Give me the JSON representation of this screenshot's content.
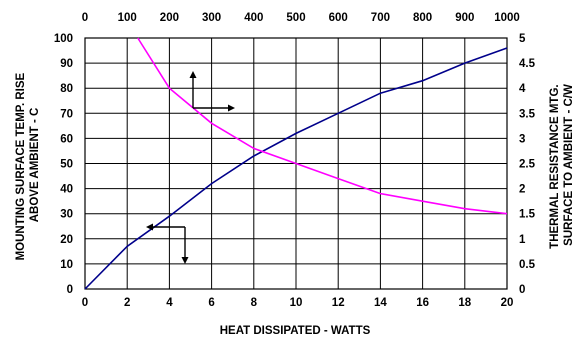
{
  "chart_data": {
    "type": "line",
    "title": "",
    "xlabel": "HEAT DISSIPATED - WATTS",
    "ylabel_left": [
      "MOUNTING SURFACE TEMP. RISE",
      "ABOVE AMBIENT - C"
    ],
    "ylabel_right": [
      "THERMAL RESISTANCE MTG.",
      "SURFACE TO AMBIENT - C/W"
    ],
    "x_bottom": {
      "range": [
        0,
        20
      ],
      "ticks": [
        "0",
        "2",
        "4",
        "6",
        "8",
        "10",
        "12",
        "14",
        "16",
        "18",
        "20"
      ]
    },
    "x_top": {
      "range": [
        0,
        1000
      ],
      "ticks": [
        "0",
        "100",
        "200",
        "300",
        "400",
        "500",
        "600",
        "700",
        "800",
        "900",
        "1000"
      ]
    },
    "y_left": {
      "range": [
        0,
        100
      ],
      "ticks": [
        "0",
        "10",
        "20",
        "30",
        "40",
        "50",
        "60",
        "70",
        "80",
        "90",
        "100"
      ]
    },
    "y_right": {
      "range": [
        0,
        5
      ],
      "ticks": [
        "0",
        "0.5",
        "1",
        "1.5",
        "2",
        "2.5",
        "3",
        "3.5",
        "4",
        "4.5",
        "5"
      ]
    },
    "grid": true,
    "series": [
      {
        "axis": "left-bottom",
        "color": "#00008B",
        "points": [
          [
            0,
            0
          ],
          [
            2,
            17
          ],
          [
            4,
            29
          ],
          [
            6,
            42
          ],
          [
            8,
            53
          ],
          [
            10,
            62
          ],
          [
            12,
            70
          ],
          [
            14,
            78
          ],
          [
            16,
            83
          ],
          [
            18,
            90
          ],
          [
            20,
            96
          ]
        ]
      },
      {
        "axis": "right-top",
        "color": "#FF00FF",
        "points": [
          [
            125,
            5.0
          ],
          [
            200,
            4.0
          ],
          [
            300,
            3.3
          ],
          [
            400,
            2.8
          ],
          [
            500,
            2.5
          ],
          [
            600,
            2.2
          ],
          [
            700,
            1.9
          ],
          [
            800,
            1.75
          ],
          [
            900,
            1.6
          ],
          [
            1000,
            1.5
          ]
        ]
      }
    ]
  }
}
